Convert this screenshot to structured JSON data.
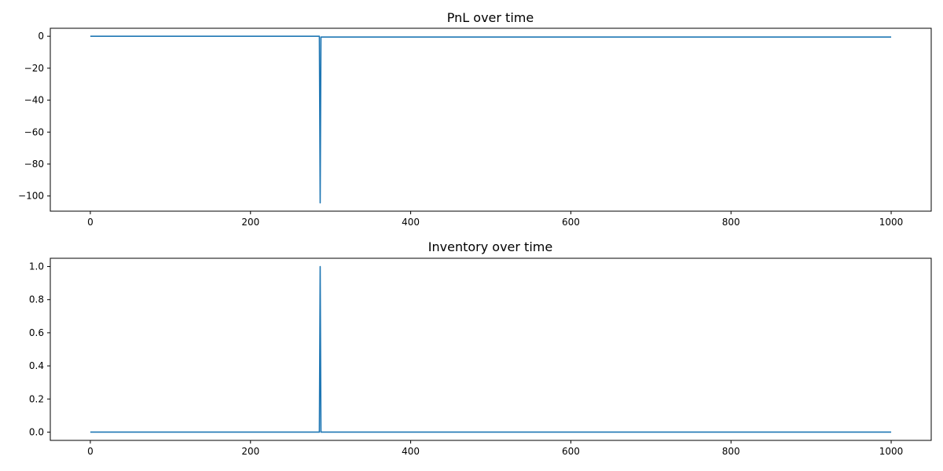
{
  "chart_data": [
    {
      "type": "line",
      "title": "PnL over time",
      "xlabel": "",
      "ylabel": "",
      "xlim": [
        -50,
        1050
      ],
      "ylim": [
        -109.5,
        5.0
      ],
      "xticks": [
        0,
        200,
        400,
        600,
        800,
        1000
      ],
      "yticks": [
        0,
        -20,
        -40,
        -60,
        -80,
        -100
      ],
      "xtick_labels": [
        "0",
        "200",
        "400",
        "600",
        "800",
        "1000"
      ],
      "ytick_labels": [
        "0",
        "−20",
        "−40",
        "−60",
        "−80",
        "−100"
      ],
      "grid": false,
      "color": "#1f77b4",
      "series": [
        {
          "x": [
            0,
            286,
            287,
            288,
            289,
            1000
          ],
          "y": [
            0,
            0,
            -104.3,
            -0.5,
            -0.5,
            -0.5
          ]
        }
      ]
    },
    {
      "type": "line",
      "title": "Inventory over time",
      "xlabel": "",
      "ylabel": "",
      "xlim": [
        -50,
        1050
      ],
      "ylim": [
        -0.05,
        1.05
      ],
      "xticks": [
        0,
        200,
        400,
        600,
        800,
        1000
      ],
      "yticks": [
        0.0,
        0.2,
        0.4,
        0.6,
        0.8,
        1.0
      ],
      "xtick_labels": [
        "0",
        "200",
        "400",
        "600",
        "800",
        "1000"
      ],
      "ytick_labels": [
        "0.0",
        "0.2",
        "0.4",
        "0.6",
        "0.8",
        "1.0"
      ],
      "grid": false,
      "color": "#1f77b4",
      "series": [
        {
          "x": [
            0,
            286,
            287,
            288,
            1000
          ],
          "y": [
            0,
            0,
            1,
            0,
            0
          ]
        }
      ]
    }
  ]
}
